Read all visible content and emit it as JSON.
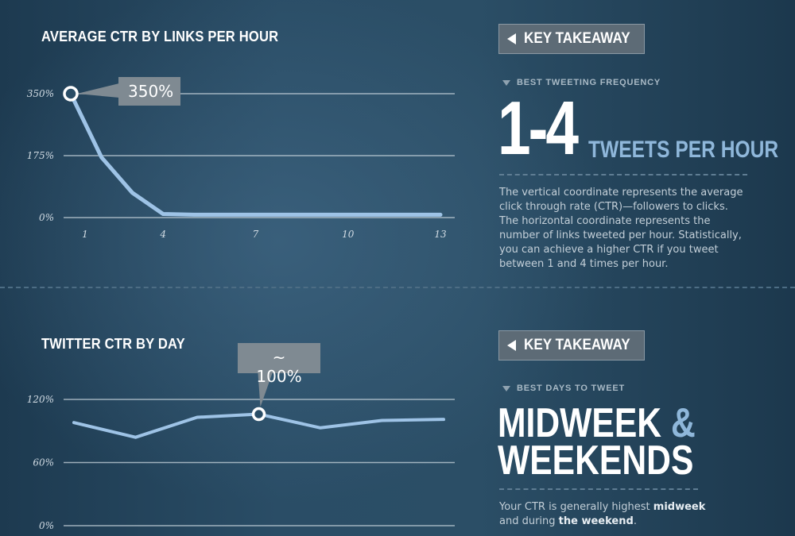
{
  "chart_data": [
    {
      "type": "line",
      "title": "AVERAGE CTR BY LINKS PER HOUR",
      "x": [
        1,
        2,
        3,
        4,
        5,
        6,
        7,
        8,
        9,
        10,
        11,
        12,
        13
      ],
      "x_ticks": [
        1,
        4,
        7,
        10,
        13
      ],
      "x_tick_labels": [
        "1",
        "4",
        "7",
        "10",
        "13"
      ],
      "xlim": [
        1,
        13
      ],
      "values": [
        350,
        170,
        70,
        10,
        8,
        8,
        8,
        8,
        8,
        8,
        8,
        8,
        8
      ],
      "ylim": [
        0,
        350
      ],
      "y_ticks": [
        0,
        175,
        350
      ],
      "y_tick_labels": [
        "0%",
        "175%",
        "350%"
      ],
      "grid": true,
      "highlight": {
        "index": 0,
        "label": "350%"
      },
      "line_color": "#9ec3e6"
    },
    {
      "type": "line",
      "title": "TWITTER CTR BY DAY",
      "x": [
        1,
        2,
        3,
        4,
        5,
        6,
        7
      ],
      "xlim": [
        1,
        7
      ],
      "values": [
        98,
        84,
        103,
        106,
        93,
        100,
        101
      ],
      "ylim": [
        0,
        120
      ],
      "y_ticks": [
        0,
        60,
        120
      ],
      "y_tick_labels": [
        "0%",
        "60%",
        "120%"
      ],
      "grid": true,
      "highlight": {
        "index": 3,
        "label": "~ 100%"
      },
      "line_color": "#9ec3e6"
    }
  ],
  "takeaway1": {
    "heading": "KEY TAKEAWAY",
    "subheading": "BEST TWEETING FREQUENCY",
    "big": "1-4",
    "big_suffix": "TWEETS PER HOUR",
    "description": "The vertical coordinate represents the average click through rate (CTR)—followers to clicks. The horizontal coordinate represents the number of links tweeted per hour. Statistically, you can achieve a higher CTR if you tweet between 1 and 4 times per hour."
  },
  "takeaway2": {
    "heading": "KEY TAKEAWAY",
    "subheading": "BEST DAYS TO TWEET",
    "big_line1": "MIDWEEK",
    "big_amp": "&",
    "big_line2": "WEEKENDS",
    "desc_part1": "Your CTR is generally highest ",
    "desc_bold1": "midweek",
    "desc_part2": " and during ",
    "desc_bold2": "the weekend",
    "desc_part3": "."
  },
  "colors": {
    "background": "#2a4d66",
    "line": "#9ec3e6",
    "grid": "#c8d4dc",
    "badge": "#7f8a92",
    "accent_blue": "#8fb7da"
  }
}
